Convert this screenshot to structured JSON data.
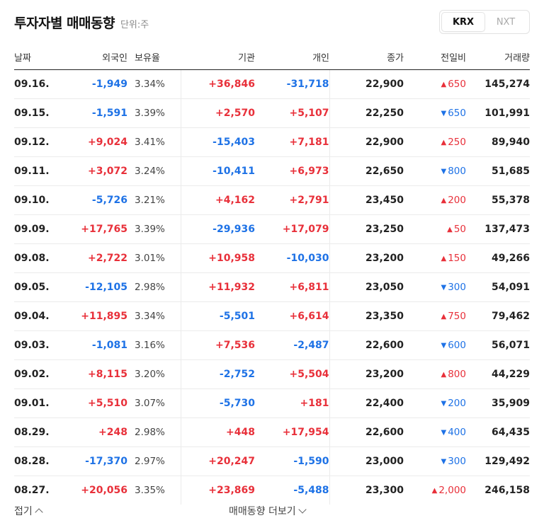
{
  "header": {
    "title": "투자자별 매매동향",
    "unit": "단위:주"
  },
  "market_tabs": [
    {
      "label": "KRX",
      "active": true
    },
    {
      "label": "NXT",
      "active": false
    }
  ],
  "columns": {
    "date": "날짜",
    "foreign": "외국인",
    "ratio": "보유율",
    "institution": "기관",
    "individual": "개인",
    "close": "종가",
    "change": "전일비",
    "volume": "거래량"
  },
  "rows": [
    {
      "date": "09.16.",
      "foreign": "-1,949",
      "ratio": "3.34%",
      "institution": "+36,846",
      "individual": "-31,718",
      "close": "22,900",
      "change": "650",
      "change_dir": "up",
      "volume": "145,274"
    },
    {
      "date": "09.15.",
      "foreign": "-1,591",
      "ratio": "3.39%",
      "institution": "+2,570",
      "individual": "+5,107",
      "close": "22,250",
      "change": "650",
      "change_dir": "down",
      "volume": "101,991"
    },
    {
      "date": "09.12.",
      "foreign": "+9,024",
      "ratio": "3.41%",
      "institution": "-15,403",
      "individual": "+7,181",
      "close": "22,900",
      "change": "250",
      "change_dir": "up",
      "volume": "89,940"
    },
    {
      "date": "09.11.",
      "foreign": "+3,072",
      "ratio": "3.24%",
      "institution": "-10,411",
      "individual": "+6,973",
      "close": "22,650",
      "change": "800",
      "change_dir": "down",
      "volume": "51,685"
    },
    {
      "date": "09.10.",
      "foreign": "-5,726",
      "ratio": "3.21%",
      "institution": "+4,162",
      "individual": "+2,791",
      "close": "23,450",
      "change": "200",
      "change_dir": "up",
      "volume": "55,378"
    },
    {
      "date": "09.09.",
      "foreign": "+17,765",
      "ratio": "3.39%",
      "institution": "-29,936",
      "individual": "+17,079",
      "close": "23,250",
      "change": "50",
      "change_dir": "up",
      "volume": "137,473"
    },
    {
      "date": "09.08.",
      "foreign": "+2,722",
      "ratio": "3.01%",
      "institution": "+10,958",
      "individual": "-10,030",
      "close": "23,200",
      "change": "150",
      "change_dir": "up",
      "volume": "49,266"
    },
    {
      "date": "09.05.",
      "foreign": "-12,105",
      "ratio": "2.98%",
      "institution": "+11,932",
      "individual": "+6,811",
      "close": "23,050",
      "change": "300",
      "change_dir": "down",
      "volume": "54,091"
    },
    {
      "date": "09.04.",
      "foreign": "+11,895",
      "ratio": "3.34%",
      "institution": "-5,501",
      "individual": "+6,614",
      "close": "23,350",
      "change": "750",
      "change_dir": "up",
      "volume": "79,462"
    },
    {
      "date": "09.03.",
      "foreign": "-1,081",
      "ratio": "3.16%",
      "institution": "+7,536",
      "individual": "-2,487",
      "close": "22,600",
      "change": "600",
      "change_dir": "down",
      "volume": "56,071"
    },
    {
      "date": "09.02.",
      "foreign": "+8,115",
      "ratio": "3.20%",
      "institution": "-2,752",
      "individual": "+5,504",
      "close": "23,200",
      "change": "800",
      "change_dir": "up",
      "volume": "44,229"
    },
    {
      "date": "09.01.",
      "foreign": "+5,510",
      "ratio": "3.07%",
      "institution": "-5,730",
      "individual": "+181",
      "close": "22,400",
      "change": "200",
      "change_dir": "down",
      "volume": "35,909"
    },
    {
      "date": "08.29.",
      "foreign": "+248",
      "ratio": "2.98%",
      "institution": "+448",
      "individual": "+17,954",
      "close": "22,600",
      "change": "400",
      "change_dir": "down",
      "volume": "64,435"
    },
    {
      "date": "08.28.",
      "foreign": "-17,370",
      "ratio": "2.97%",
      "institution": "+20,247",
      "individual": "-1,590",
      "close": "23,000",
      "change": "300",
      "change_dir": "down",
      "volume": "129,492"
    },
    {
      "date": "08.27.",
      "foreign": "+20,056",
      "ratio": "3.35%",
      "institution": "+23,869",
      "individual": "-5,488",
      "close": "23,300",
      "change": "2,000",
      "change_dir": "up",
      "volume": "246,158"
    }
  ],
  "footer": {
    "fold_label": "접기",
    "more_label": "매매동향 더보기"
  },
  "colors": {
    "up": "#e8303a",
    "down": "#1e72e6",
    "up_arrow_icon": "up-triangle-icon",
    "down_arrow_icon": "down-triangle-icon"
  }
}
